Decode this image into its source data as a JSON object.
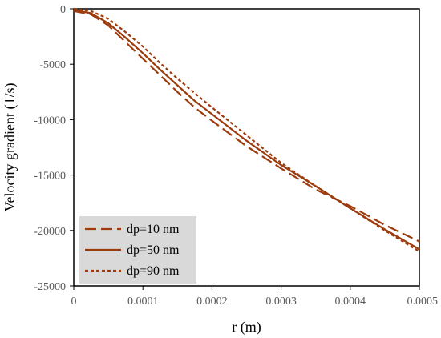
{
  "chart_data": {
    "type": "line",
    "title": "",
    "xlabel": "r (m)",
    "ylabel": "Velocity gradient (1/s)",
    "xlim": [
      0,
      0.0005
    ],
    "ylim": [
      -25000,
      0
    ],
    "xticks": [
      0,
      0.0001,
      0.0002,
      0.0003,
      0.0004,
      0.0005
    ],
    "xtick_labels": [
      "0",
      "0.0001",
      "0.0002",
      "0.0003",
      "0.0004",
      "0.0005"
    ],
    "yticks": [
      0,
      -5000,
      -10000,
      -15000,
      -20000,
      -25000
    ],
    "ytick_labels": [
      "0",
      "-5000",
      "-10000",
      "-15000",
      "-20000",
      "-25000"
    ],
    "grid": false,
    "legend_position": "bottom-left",
    "series": [
      {
        "name": "dp=10 nm",
        "style": "dashed",
        "color": "#9C3C0E",
        "x": [
          0,
          2.5e-05,
          5e-05,
          7.5e-05,
          0.0001,
          0.000125,
          0.00015,
          0.000175,
          0.0002,
          0.00025,
          0.0003,
          0.00035,
          0.0004,
          0.00045,
          0.0005
        ],
        "y": [
          -200,
          -500,
          -1500,
          -3000,
          -4500,
          -6000,
          -7500,
          -8900,
          -10100,
          -12400,
          -14400,
          -16300,
          -17800,
          -19500,
          -21000
        ]
      },
      {
        "name": "dp=50 nm",
        "style": "solid",
        "color": "#9C3C0E",
        "x": [
          0,
          2.5e-05,
          5e-05,
          7.5e-05,
          0.0001,
          0.000125,
          0.00015,
          0.000175,
          0.0002,
          0.00025,
          0.0003,
          0.00035,
          0.0004,
          0.00045,
          0.0005
        ],
        "y": [
          -100,
          -400,
          -1300,
          -2600,
          -4000,
          -5500,
          -6900,
          -8300,
          -9500,
          -11900,
          -14100,
          -16000,
          -18000,
          -19900,
          -21700
        ]
      },
      {
        "name": "dp=90 nm",
        "style": "dotted",
        "color": "#9C3C0E",
        "x": [
          0,
          2.5e-05,
          5e-05,
          7.5e-05,
          0.0001,
          0.000125,
          0.00015,
          0.000175,
          0.0002,
          0.00025,
          0.0003,
          0.00035,
          0.0004,
          0.00045,
          0.0005
        ],
        "y": [
          0,
          -200,
          -900,
          -2100,
          -3400,
          -4900,
          -6300,
          -7600,
          -8900,
          -11400,
          -13900,
          -16000,
          -18000,
          -20000,
          -21900
        ]
      }
    ]
  }
}
